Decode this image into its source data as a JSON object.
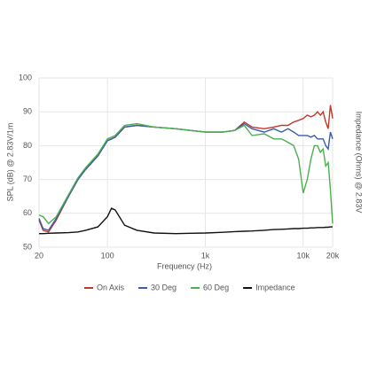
{
  "chart_data": {
    "type": "line",
    "x_label": "Frequency (Hz)",
    "y_label": "SPL (dB) @ 2.83V/1m",
    "y2_label": "Impedance (Ohms) @ 2.83V",
    "log_x": true,
    "grid": true,
    "legend": "bottom",
    "xlim": [
      20,
      20000
    ],
    "xticks": [
      20,
      100,
      {
        "value": 1000,
        "label": "1k"
      },
      {
        "value": 10000,
        "label": "10k"
      },
      {
        "value": 20000,
        "label": "20k"
      }
    ],
    "ylim": [
      50,
      100
    ],
    "yticks": [
      50,
      60,
      70,
      80,
      90,
      100
    ],
    "x": [
      20,
      22,
      25,
      30,
      40,
      50,
      60,
      80,
      100,
      110,
      120,
      150,
      200,
      300,
      500,
      700,
      1000,
      1500,
      2000,
      2500,
      3000,
      4000,
      5000,
      6000,
      7000,
      8000,
      9000,
      10000,
      11000,
      12000,
      13000,
      14000,
      15000,
      16000,
      17000,
      18000,
      19000,
      20000
    ],
    "series": [
      {
        "name": "On Axis",
        "color": "#c0392b",
        "values": [
          58,
          55,
          54.5,
          58,
          65,
          70,
          73,
          77,
          81.5,
          82,
          82.5,
          85.5,
          86,
          85.5,
          85,
          84.5,
          84,
          84,
          84.5,
          87,
          85.5,
          85,
          85.5,
          86,
          86,
          87,
          87.5,
          88,
          89,
          88.5,
          89,
          90,
          89,
          90,
          87,
          85,
          92,
          88
        ]
      },
      {
        "name": "30 Deg",
        "color": "#3a5da8",
        "values": [
          58.5,
          55.5,
          55,
          58.5,
          65,
          70,
          73,
          77,
          81.5,
          82,
          82.5,
          85.5,
          86,
          85.5,
          85,
          84.5,
          84,
          84,
          84.5,
          86.5,
          85,
          84,
          85,
          84,
          85,
          84,
          83,
          83,
          83,
          82.5,
          83,
          82,
          82,
          82,
          80,
          79,
          84,
          82
        ]
      },
      {
        "name": "60 Deg",
        "color": "#4caf50",
        "values": [
          59.5,
          59,
          57,
          59,
          65.5,
          70.5,
          73.5,
          77.5,
          82,
          82.5,
          83,
          86,
          86.5,
          85.5,
          85,
          84.5,
          84,
          84,
          84.5,
          86,
          83,
          83.5,
          82,
          82,
          81,
          80,
          76,
          66,
          70,
          76,
          80,
          80,
          78,
          79,
          74,
          75,
          67,
          57
        ]
      },
      {
        "name": "Impedance",
        "color": "#111111",
        "values": [
          54,
          54,
          54.1,
          54.2,
          54.3,
          54.5,
          55,
          56,
          59,
          61.5,
          61,
          56.5,
          55,
          54.2,
          54,
          54.1,
          54.2,
          54.4,
          54.6,
          54.7,
          54.8,
          55,
          55.2,
          55.3,
          55.4,
          55.5,
          55.5,
          55.6,
          55.6,
          55.7,
          55.7,
          55.8,
          55.8,
          55.8,
          55.9,
          55.9,
          56,
          56
        ]
      }
    ]
  }
}
